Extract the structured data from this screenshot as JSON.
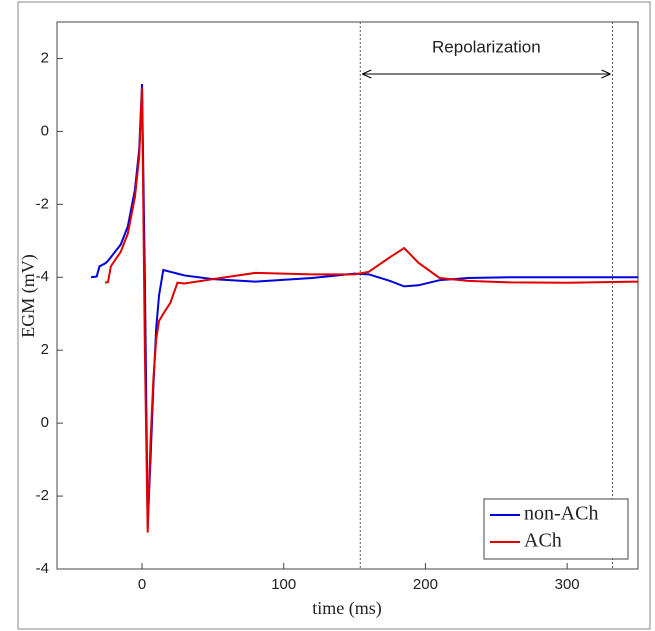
{
  "chart_data": {
    "type": "line",
    "xlabel": "time (ms)",
    "ylabel": "EGM (mV)",
    "x": [
      -36,
      -32,
      -30,
      -26,
      -24,
      -22,
      -15,
      -10,
      -5,
      -2,
      0,
      2,
      4,
      6,
      8,
      10,
      12,
      15,
      20,
      25,
      30,
      50,
      80,
      120,
      150,
      160,
      175,
      185,
      195,
      210,
      230,
      260,
      300,
      350
    ],
    "series": [
      {
        "name": "non-ACh",
        "color": "#0000dd",
        "values": [
          4.0,
          4.02,
          4.3,
          4.38,
          4.45,
          4.55,
          4.9,
          5.4,
          6.4,
          7.5,
          9.3,
          4.0,
          -2.8,
          -1.0,
          1.0,
          2.6,
          3.5,
          4.2,
          4.15,
          4.1,
          4.05,
          3.95,
          3.88,
          3.98,
          4.1,
          4.08,
          3.9,
          3.75,
          3.78,
          3.92,
          3.98,
          4.0,
          4.0,
          4.0
        ]
      },
      {
        "name": "ACh",
        "color": "#e00000",
        "values": [
          null,
          null,
          null,
          3.85,
          3.87,
          4.3,
          4.7,
          5.2,
          6.2,
          7.3,
          9.2,
          2.0,
          -3.0,
          -0.5,
          1.2,
          2.3,
          2.8,
          3.0,
          3.3,
          3.85,
          3.83,
          3.95,
          4.12,
          4.08,
          4.08,
          4.15,
          4.55,
          4.8,
          4.4,
          3.98,
          3.9,
          3.86,
          3.85,
          3.88
        ]
      }
    ],
    "xlim": [
      -60,
      350
    ],
    "xticks": [
      0,
      100,
      200,
      300
    ],
    "ylim": [
      -4,
      11
    ],
    "yticks": [
      -4,
      -2,
      0,
      2,
      {
        "value": 4,
        "label": "-4"
      },
      {
        "value": 6,
        "label": "-2"
      },
      {
        "value": 8,
        "label": "0"
      },
      {
        "value": 10,
        "label": "2"
      }
    ],
    "annotation": {
      "text": "Repolarization",
      "x": [
        154,
        332
      ]
    },
    "legend": "lower right"
  }
}
